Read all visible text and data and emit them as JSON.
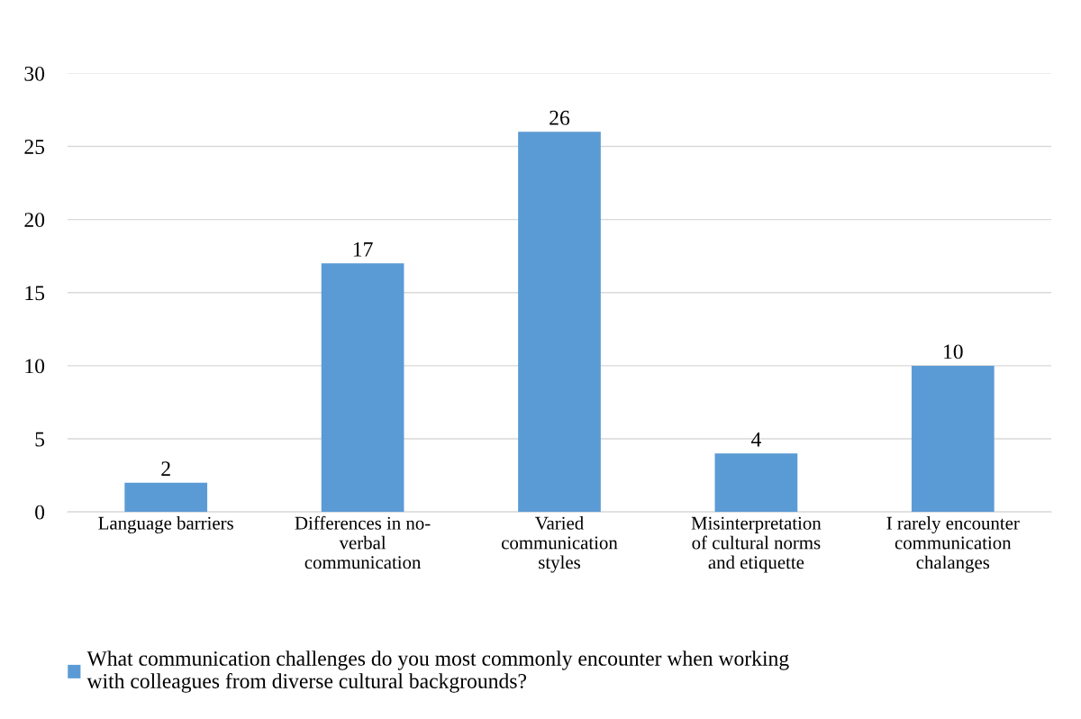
{
  "chart_data": {
    "type": "bar",
    "categories": [
      "Language barriers",
      "Differences in no-\nverbal\ncommunication",
      "Varied\ncommunication\nstyles",
      "Misinterpretation\nof cultural norms\nand etiquette",
      "I rarely encounter\ncommunication\nchalanges"
    ],
    "series": [
      {
        "name": "What communication challenges do you most commonly encounter when working\nwith colleagues from diverse cultural backgrounds?",
        "color": "#5b9bd5",
        "values": [
          2,
          17,
          26,
          4,
          10
        ]
      }
    ],
    "ylim": [
      0,
      30
    ],
    "yticks": [
      0,
      5,
      10,
      15,
      20,
      25,
      30
    ],
    "grid": "y",
    "data_labels": true,
    "legend": "bottom"
  }
}
